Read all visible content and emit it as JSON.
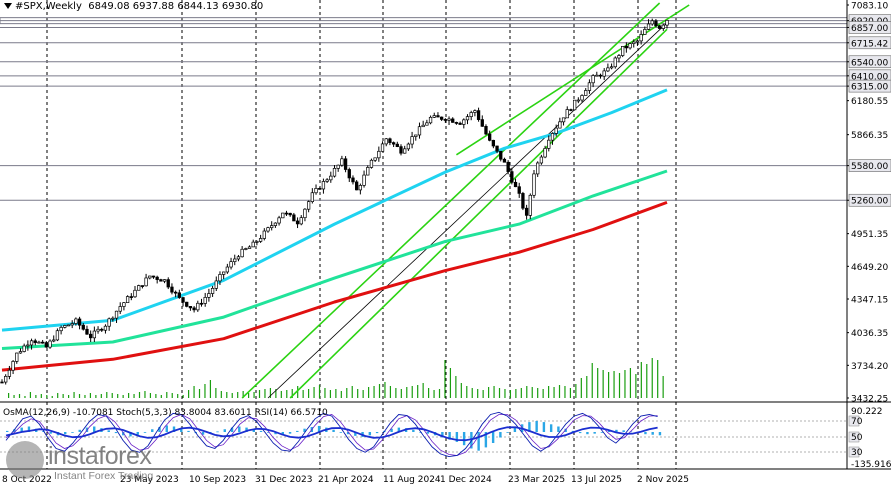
{
  "header": {
    "symbol": "#SPX,Weekly",
    "ohlc": "6849.08 6937.88 6844.13 6930.80"
  },
  "indicator_label": "OsMA(12,26,9) -10.7081  Stoch(5,3,3) 83.8004 83.6011  RSI(14) 66.5710",
  "watermark": {
    "brand": "instaforex",
    "tagline": "Instant Forex Trading"
  },
  "colors": {
    "candle": "#000000",
    "ma_cyan": "#1fd3f0",
    "ma_green": "#21e39a",
    "ma_red": "#e01010",
    "channel": "#2bd312",
    "level_line": "#7a7a8a",
    "osma_hist": "#2aa6e6",
    "stoch_main": "#0b1eb0",
    "stoch_signal": "#6a20c8",
    "rsi": "#1b2fd0"
  },
  "chart_data": [
    {
      "type": "candlestick",
      "title": "#SPX,Weekly",
      "price_axis_ticks": [
        "7083.10",
        "6920.00",
        "6857.00",
        "6715.42",
        "6540.00",
        "6410.00",
        "6315.00",
        "6180.55",
        "5866.35",
        "5580.00",
        "5260.00",
        "4951.35",
        "4649.20",
        "4347.15",
        "4036.35",
        "3734.20",
        "3432.25"
      ],
      "time_axis_labels": [
        "8 Oct 2022",
        "23 May 2023",
        "10 Sep 2023",
        "31 Dec 2023",
        "21 Apr 2024",
        "11 Aug 2024",
        "1 Dec 2024",
        "23 Mar 2025",
        "13 Jul 2025",
        "2 Nov 2025"
      ],
      "ylim": [
        3432.25,
        7083.1
      ],
      "horizontal_levels": [
        6920,
        6857,
        6715.42,
        6540,
        6410,
        6315,
        5580,
        5260
      ],
      "last_candle": {
        "open": 6849.08,
        "high": 6937.88,
        "low": 6844.13,
        "close": 6930.8
      },
      "price_path": [
        [
          0,
          3580
        ],
        [
          4,
          3840
        ],
        [
          8,
          3980
        ],
        [
          12,
          3900
        ],
        [
          16,
          4080
        ],
        [
          20,
          4140
        ],
        [
          24,
          4000
        ],
        [
          28,
          4110
        ],
        [
          32,
          4280
        ],
        [
          36,
          4420
        ],
        [
          40,
          4560
        ],
        [
          44,
          4520
        ],
        [
          48,
          4350
        ],
        [
          52,
          4250
        ],
        [
          56,
          4400
        ],
        [
          60,
          4600
        ],
        [
          64,
          4760
        ],
        [
          68,
          4850
        ],
        [
          72,
          4990
        ],
        [
          76,
          5150
        ],
        [
          80,
          5060
        ],
        [
          84,
          5310
        ],
        [
          88,
          5460
        ],
        [
          92,
          5620
        ],
        [
          96,
          5350
        ],
        [
          100,
          5610
        ],
        [
          104,
          5830
        ],
        [
          108,
          5720
        ],
        [
          112,
          5880
        ],
        [
          116,
          6020
        ],
        [
          120,
          6020
        ],
        [
          124,
          5980
        ],
        [
          128,
          6090
        ],
        [
          132,
          5800
        ],
        [
          136,
          5600
        ],
        [
          140,
          5300
        ],
        [
          142,
          5100
        ],
        [
          144,
          5520
        ],
        [
          148,
          5840
        ],
        [
          152,
          6040
        ],
        [
          156,
          6200
        ],
        [
          160,
          6390
        ],
        [
          164,
          6460
        ],
        [
          168,
          6660
        ],
        [
          172,
          6730
        ],
        [
          174,
          6830
        ],
        [
          176,
          6920
        ],
        [
          178,
          6860
        ],
        [
          180,
          6930.8
        ]
      ],
      "moving_averages": [
        {
          "points": [
            [
              0,
              4060
            ],
            [
              30,
              4150
            ],
            [
              60,
              4520
            ],
            [
              90,
              5040
            ],
            [
              120,
              5520
            ],
            [
              136,
              5740
            ],
            [
              150,
              5880
            ],
            [
              165,
              6070
            ],
            [
              180,
              6280
            ]
          ]
        },
        {
          "points": [
            [
              0,
              3890
            ],
            [
              30,
              3950
            ],
            [
              60,
              4180
            ],
            [
              90,
              4540
            ],
            [
              120,
              4880
            ],
            [
              140,
              5040
            ],
            [
              160,
              5300
            ],
            [
              180,
              5530
            ]
          ]
        },
        {
          "points": [
            [
              0,
              3690
            ],
            [
              30,
              3790
            ],
            [
              60,
              3980
            ],
            [
              90,
              4320
            ],
            [
              120,
              4610
            ],
            [
              140,
              4780
            ],
            [
              160,
              4990
            ],
            [
              180,
              5240
            ]
          ]
        }
      ],
      "channels": [
        [
          [
            65,
            3432.25
          ],
          [
            178,
            7083.1
          ]
        ],
        [
          [
            78,
            3432.25
          ],
          [
            180,
            6840
          ]
        ],
        [
          [
            72,
            3432.25
          ],
          [
            180,
            6900
          ]
        ]
      ],
      "volume": [
        5,
        3,
        4,
        2,
        6,
        3,
        4,
        3,
        2,
        5,
        4,
        3,
        6,
        4,
        3,
        5,
        3,
        4,
        6,
        5,
        4,
        3,
        5,
        4,
        6,
        7,
        5,
        4,
        3,
        6,
        5,
        4,
        3,
        8,
        12,
        9,
        14,
        18,
        10,
        7,
        6,
        5,
        6,
        7,
        5,
        6,
        8,
        9,
        10,
        9,
        7,
        8,
        9,
        12,
        8,
        9,
        11,
        13,
        10,
        8,
        9,
        7,
        10,
        12,
        9,
        8,
        11,
        12,
        14,
        16,
        12,
        10,
        9,
        11,
        12,
        13,
        15,
        10,
        8,
        9,
        38,
        30,
        22,
        15,
        12,
        10,
        9,
        8,
        11,
        12,
        10,
        9,
        8,
        9,
        10,
        12,
        11,
        10,
        9,
        12,
        11,
        13,
        12,
        10,
        14,
        20,
        22,
        35,
        30,
        28,
        26,
        27,
        25,
        28,
        30,
        24,
        36,
        34,
        40,
        38,
        22
      ]
    },
    {
      "type": "oscillator",
      "series": [
        {
          "name": "OsMA(12,26,9)",
          "last": -10.7081
        },
        {
          "name": "Stoch(5,3,3)",
          "last": [
            83.8004,
            83.6011
          ]
        },
        {
          "name": "RSI(14)",
          "last": 66.571
        }
      ],
      "axis_labels": [
        "90.222",
        "70",
        "50",
        "30",
        "-135.9167"
      ],
      "ylim": [
        -135.9167,
        90.222
      ],
      "osma": [
        2,
        5,
        8,
        10,
        6,
        2,
        -3,
        -6,
        -4,
        0,
        4,
        8,
        10,
        7,
        3,
        -2,
        -6,
        -8,
        -5,
        0,
        5,
        9,
        12,
        10,
        6,
        2,
        -2,
        -5,
        -3,
        1,
        5,
        8,
        10,
        8,
        5,
        2,
        -1,
        -4,
        -6,
        -3,
        2,
        6,
        9,
        11,
        8,
        4,
        0,
        -4,
        -7,
        -9,
        -6,
        -2,
        2,
        6,
        8,
        7,
        4,
        0,
        -3,
        -6,
        -10,
        -14,
        -18,
        -24,
        -30,
        -34,
        -28,
        -20,
        -10,
        0,
        8,
        14,
        18,
        20,
        18,
        14,
        10,
        6,
        2,
        -2,
        -4,
        -3,
        0,
        2,
        4,
        3,
        1,
        -2,
        -4,
        -5,
        -6
      ],
      "stoch": [
        40,
        60,
        80,
        85,
        70,
        45,
        25,
        20,
        35,
        55,
        75,
        88,
        85,
        65,
        40,
        22,
        18,
        30,
        55,
        78,
        90,
        88,
        70,
        48,
        30,
        25,
        40,
        62,
        80,
        86,
        75,
        55,
        35,
        22,
        20,
        38,
        60,
        80,
        90,
        85,
        65,
        42,
        25,
        18,
        28,
        50,
        72,
        88,
        86,
        70,
        48,
        28,
        15,
        10,
        12,
        25,
        45,
        70,
        88,
        92,
        85,
        70,
        50,
        30,
        20,
        30,
        50,
        70,
        85,
        90,
        82,
        65,
        45,
        35,
        50,
        70,
        85,
        88,
        84
      ],
      "stoch_signal": [
        45,
        55,
        70,
        80,
        75,
        55,
        35,
        25,
        30,
        45,
        65,
        80,
        86,
        75,
        55,
        32,
        22,
        25,
        42,
        65,
        82,
        88,
        80,
        60,
        40,
        28,
        32,
        50,
        70,
        82,
        80,
        65,
        45,
        30,
        22,
        30,
        48,
        68,
        84,
        88,
        75,
        55,
        35,
        22,
        24,
        40,
        60,
        80,
        86,
        78,
        60,
        38,
        22,
        14,
        12,
        18,
        35,
        58,
        78,
        88,
        88,
        78,
        60,
        40,
        25,
        28,
        42,
        60,
        78,
        86,
        85,
        72,
        55,
        42,
        45,
        60,
        76,
        85,
        86
      ]
    }
  ]
}
